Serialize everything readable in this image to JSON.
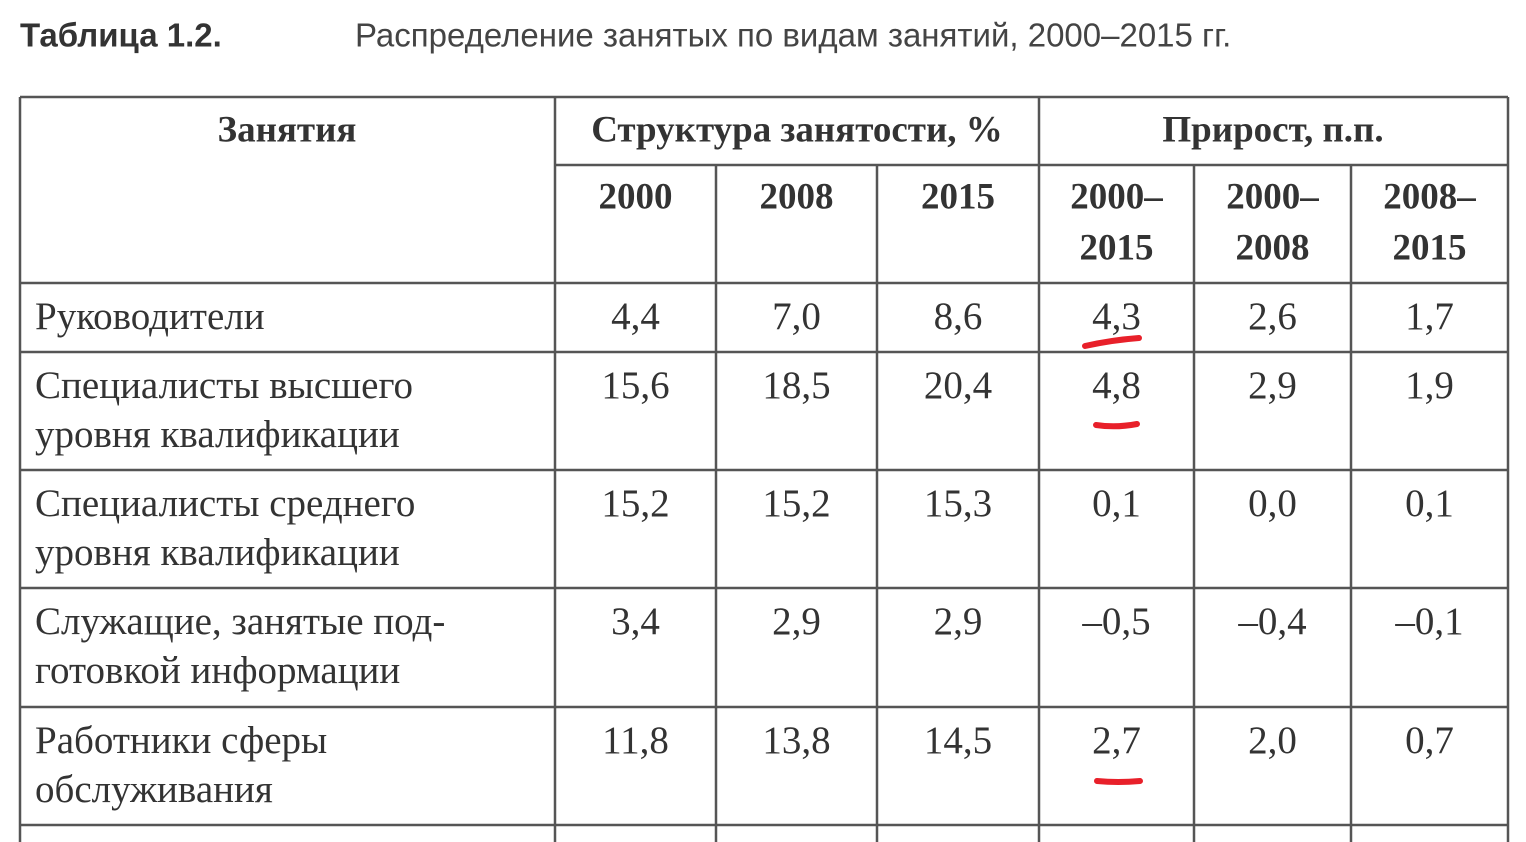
{
  "title": {
    "label": "Таблица 1.2.",
    "text": "Распределение занятых по видам занятий, 2000–2015 гг."
  },
  "table": {
    "header": {
      "occupation": "Занятия",
      "structure": "Структура занятости, %",
      "growth": "Прирост, п.п.",
      "years": [
        [
          "2000"
        ],
        [
          "2008"
        ],
        [
          "2015"
        ],
        [
          "2000–",
          "2015"
        ],
        [
          "2000–",
          "2008"
        ],
        [
          "2008–",
          "2015"
        ]
      ]
    },
    "rows": [
      {
        "name": [
          "Руководители"
        ],
        "values": [
          "4,4",
          "7,0",
          "8,6",
          "4,3",
          "2,6",
          "1,7"
        ]
      },
      {
        "name": [
          "Специалисты высшего",
          "уровня квалификации"
        ],
        "values": [
          "15,6",
          "18,5",
          "20,4",
          "4,8",
          "2,9",
          "1,9"
        ]
      },
      {
        "name": [
          "Специалисты среднего",
          "уровня квалификации"
        ],
        "values": [
          "15,2",
          "15,2",
          "15,3",
          "0,1",
          "0,0",
          "0,1"
        ]
      },
      {
        "name": [
          "Служащие, занятые под-",
          "готовкой информации"
        ],
        "values": [
          "3,4",
          "2,9",
          "2,9",
          "–0,5",
          "–0,4",
          "–0,1"
        ]
      },
      {
        "name": [
          "Работники сферы",
          "обслуживания"
        ],
        "values": [
          "11,8",
          "13,8",
          "14,5",
          "2,7",
          "2,0",
          "0,7"
        ]
      }
    ]
  }
}
